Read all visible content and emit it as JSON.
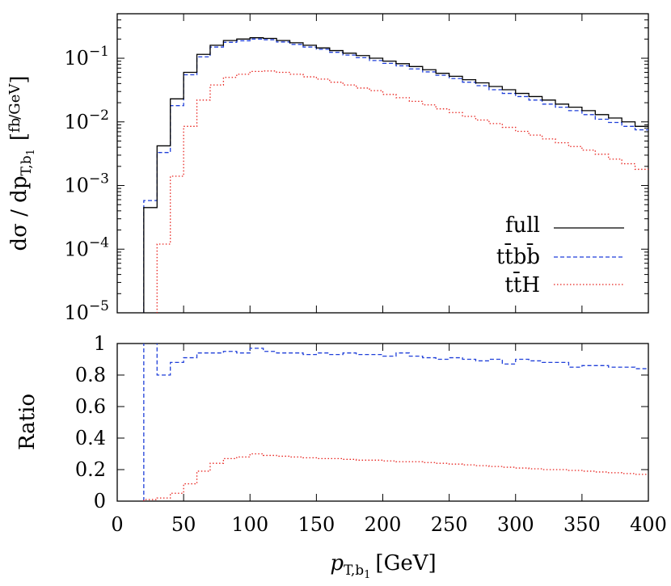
{
  "chart_data": [
    {
      "type": "line",
      "subtype": "histogram-step",
      "ylabel_main": "dσ / dp",
      "ylabel_sub": "T,b",
      "ylabel_subsub": "1",
      "ylabel_units_num": "fb",
      "ylabel_units_den": "GeV",
      "yscale": "log",
      "ylim": [
        1e-05,
        0.5
      ],
      "xlim": [
        0,
        400
      ],
      "yticks": [
        {
          "value": 1e-05,
          "base": "10",
          "exp": "−5"
        },
        {
          "value": 0.0001,
          "base": "10",
          "exp": "−4"
        },
        {
          "value": 0.001,
          "base": "10",
          "exp": "−3"
        },
        {
          "value": 0.01,
          "base": "10",
          "exp": "−2"
        },
        {
          "value": 0.1,
          "base": "10",
          "exp": "−1"
        }
      ],
      "legend_position": "lower-right",
      "bin_edges": [
        20,
        30,
        40,
        50,
        60,
        70,
        80,
        90,
        100,
        110,
        120,
        130,
        140,
        150,
        160,
        170,
        180,
        190,
        200,
        210,
        220,
        230,
        240,
        250,
        260,
        270,
        280,
        290,
        300,
        310,
        320,
        330,
        340,
        350,
        360,
        370,
        380,
        390,
        400
      ],
      "series": [
        {
          "name": "full",
          "color": "#000000",
          "dash": "solid",
          "values": [
            0.00045,
            0.0042,
            0.023,
            0.06,
            0.115,
            0.16,
            0.19,
            0.2,
            0.21,
            0.205,
            0.19,
            0.175,
            0.16,
            0.145,
            0.132,
            0.12,
            0.11,
            0.1,
            0.09,
            0.082,
            0.074,
            0.066,
            0.058,
            0.052,
            0.046,
            0.041,
            0.036,
            0.032,
            0.028,
            0.025,
            0.022,
            0.019,
            0.017,
            0.015,
            0.013,
            0.0115,
            0.01,
            0.0085
          ]
        },
        {
          "name": "tt̄bb̄",
          "color": "#1f3fd9",
          "dash": "dashed",
          "values": [
            0.00058,
            0.0033,
            0.018,
            0.055,
            0.105,
            0.15,
            0.178,
            0.188,
            0.2,
            0.195,
            0.18,
            0.165,
            0.15,
            0.138,
            0.124,
            0.112,
            0.102,
            0.092,
            0.083,
            0.076,
            0.068,
            0.061,
            0.054,
            0.048,
            0.042,
            0.037,
            0.032,
            0.028,
            0.025,
            0.022,
            0.019,
            0.017,
            0.015,
            0.013,
            0.011,
            0.0098,
            0.0085,
            0.0075
          ]
        },
        {
          "name": "tt̄H",
          "color": "#e8231e",
          "dash": "dotted",
          "values": [
            3.5e-06,
            0.00012,
            0.0014,
            0.0085,
            0.022,
            0.038,
            0.05,
            0.056,
            0.062,
            0.063,
            0.06,
            0.056,
            0.051,
            0.047,
            0.042,
            0.038,
            0.034,
            0.031,
            0.027,
            0.024,
            0.021,
            0.0185,
            0.016,
            0.014,
            0.0122,
            0.0107,
            0.0094,
            0.0082,
            0.0071,
            0.0062,
            0.0054,
            0.0047,
            0.0041,
            0.0036,
            0.0031,
            0.0026,
            0.0022,
            0.0018
          ]
        }
      ]
    },
    {
      "type": "line",
      "subtype": "histogram-step",
      "ylabel": "Ratio",
      "xlabel_main": "p",
      "xlabel_sub": "T,b",
      "xlabel_subsub": "1",
      "xlabel_units": "[GeV]",
      "xlim": [
        0,
        400
      ],
      "ylim": [
        0,
        1
      ],
      "xticks": [
        0,
        50,
        100,
        150,
        200,
        250,
        300,
        350,
        400
      ],
      "yticks": [
        0,
        0.2,
        0.4,
        0.6,
        0.8,
        1
      ],
      "bin_edges": [
        20,
        30,
        40,
        50,
        60,
        70,
        80,
        90,
        100,
        110,
        120,
        130,
        140,
        150,
        160,
        170,
        180,
        190,
        200,
        210,
        220,
        230,
        240,
        250,
        260,
        270,
        280,
        290,
        300,
        310,
        320,
        330,
        340,
        350,
        360,
        370,
        380,
        390,
        400
      ],
      "series": [
        {
          "name": "tt̄bb̄",
          "color": "#1f3fd9",
          "dash": "dashed",
          "values": [
            1.02,
            0.8,
            0.88,
            0.91,
            0.94,
            0.94,
            0.95,
            0.94,
            0.97,
            0.95,
            0.94,
            0.94,
            0.93,
            0.94,
            0.93,
            0.94,
            0.93,
            0.93,
            0.92,
            0.94,
            0.92,
            0.91,
            0.9,
            0.91,
            0.9,
            0.89,
            0.9,
            0.87,
            0.9,
            0.89,
            0.88,
            0.88,
            0.85,
            0.86,
            0.86,
            0.85,
            0.85,
            0.84
          ]
        },
        {
          "name": "tt̄H",
          "color": "#e8231e",
          "dash": "dotted",
          "values": [
            0.01,
            0.02,
            0.05,
            0.11,
            0.19,
            0.24,
            0.27,
            0.28,
            0.3,
            0.29,
            0.285,
            0.28,
            0.275,
            0.27,
            0.27,
            0.265,
            0.26,
            0.26,
            0.255,
            0.25,
            0.25,
            0.245,
            0.24,
            0.235,
            0.23,
            0.225,
            0.22,
            0.215,
            0.21,
            0.205,
            0.2,
            0.2,
            0.195,
            0.19,
            0.185,
            0.18,
            0.175,
            0.17
          ]
        }
      ]
    }
  ]
}
